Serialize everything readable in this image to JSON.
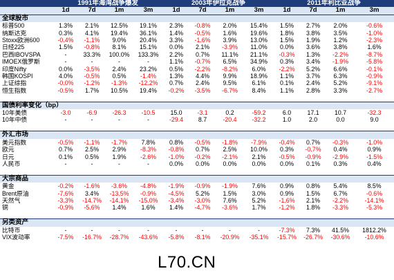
{
  "headers": {
    "groups": [
      "1991年海湾战争爆发",
      "2003年伊拉克战争",
      "2011年利比亚战争"
    ],
    "periods": [
      "1d",
      "7d",
      "1m",
      "3m"
    ]
  },
  "sections": [
    {
      "title": "全球股市",
      "rows": [
        {
          "label": "标普500",
          "values": [
            "1.3%",
            "2.1%",
            "12.5%",
            "19.1%",
            "2.3%",
            "-0.8%",
            "2.0%",
            "15.4%",
            "1.5%",
            "2.7%",
            "2.0%",
            "-0.6%"
          ]
        },
        {
          "label": "纳斯达克",
          "values": [
            "0.3%",
            "4.1%",
            "19.4%",
            "36.1%",
            "1.4%",
            "-0.5%",
            "1.6%",
            "19.6%",
            "1.8%",
            "3.8%",
            "3.5%",
            "-1.0%"
          ]
        },
        {
          "label": "Stoxx欧洲600",
          "values": [
            "-0.4%",
            "-1.1%",
            "9.0%",
            "20.4%",
            "3.3%",
            "-1.6%",
            "3.9%",
            "13.0%",
            "1.5%",
            "1.9%",
            "1.2%",
            "-2.3%"
          ]
        },
        {
          "label": "日经225",
          "values": [
            "1.5%",
            "-0.8%",
            "8.1%",
            "15.1%",
            "0.0%",
            "2.1%",
            "-3.9%",
            "11.0%",
            "0.0%",
            "3.6%",
            "3.8%",
            "1.6%"
          ]
        },
        {
          "label": "巴西IBOVSPA",
          "values": [
            "-",
            "33.3%",
            "100.0%",
            "133.3%",
            "2.2%",
            "0.7%",
            "11.1%",
            "21.1%",
            "-0.3%",
            "1.3%",
            "-2.2%",
            "-8.7%"
          ]
        },
        {
          "label": "IMOEX俄罗斯",
          "values": [
            "-",
            "-",
            "-",
            "-",
            "1.1%",
            "-0.7%",
            "6.5%",
            "34.9%",
            "0.3%",
            "3.4%",
            "-1.9%",
            "-5.8%"
          ]
        },
        {
          "label": "印度Nifty",
          "values": [
            "0.0%",
            "-3.5%",
            "2.4%",
            "23.2%",
            "0.5%",
            "-2.2%",
            "-8.2%",
            "6.0%",
            "-2.2%",
            "5.2%",
            "6.6%",
            "-0.1%"
          ]
        },
        {
          "label": "韩国KOSPI",
          "values": [
            "4.0%",
            "-0.5%",
            "0.5%",
            "-1.4%",
            "1.3%",
            "4.4%",
            "9.9%",
            "18.9%",
            "1.1%",
            "3.7%",
            "6.3%",
            "-0.9%"
          ]
        },
        {
          "label": "上证综指",
          "values": [
            "-0.0%",
            "-1.2%",
            "-1.3%",
            "-12.2%",
            "0.7%",
            "2.4%",
            "9.5%",
            "6.1%",
            "0.1%",
            "2.4%",
            "5.2%",
            "-9.1%"
          ]
        },
        {
          "label": "恒生指数",
          "values": [
            "-0.5%",
            "1.7%",
            "10.5%",
            "19.4%",
            "-0.2%",
            "-3.5%",
            "-6.7%",
            "8.4%",
            "1.1%",
            "2.8%",
            "3.3%",
            "-2.7%"
          ]
        }
      ]
    },
    {
      "title": "国债利率变化（bp）",
      "rows": [
        {
          "label": "10年美债",
          "values": [
            "-3.0",
            "-6.9",
            "-26.3",
            "-10.5",
            "15.0",
            "-3.1",
            "0.2",
            "-59.2",
            "6.0",
            "17.1",
            "10.7",
            "-32.3"
          ]
        },
        {
          "label": "10年中债",
          "values": [
            "-",
            "-",
            "-",
            "-",
            "-29.4",
            "8.7",
            "-20.4",
            "-32.2",
            "1.0",
            "2.0",
            "0.0",
            "9.0"
          ]
        }
      ]
    },
    {
      "title": "外汇市场",
      "rows": [
        {
          "label": "美元指数",
          "values": [
            "-0.5%",
            "-1.1%",
            "-1.7%",
            "7.8%",
            "0.8%",
            "-0.5%",
            "-1.8%",
            "-7.9%",
            "-0.4%",
            "0.7%",
            "-0.3%",
            "-1.0%"
          ]
        },
        {
          "label": "欧元",
          "values": [
            "0.7%",
            "2.5%",
            "2.9%",
            "-8.3%",
            "-0.8%",
            "0.7%",
            "2.5%",
            "10.0%",
            "0.3%",
            "-0.7%",
            "0.4%",
            "0.9%"
          ]
        },
        {
          "label": "日元",
          "values": [
            "0.1%",
            "0.5%",
            "1.9%",
            "-2.6%",
            "-1.0%",
            "-0.2%",
            "-2.1%",
            "2.1%",
            "-0.5%",
            "-0.9%",
            "-2.9%",
            "-1.5%"
          ]
        },
        {
          "label": "人民币",
          "values": [
            "-",
            "-",
            "-",
            "-",
            "0.0%",
            "0.0%",
            "0.0%",
            "0.0%",
            "0.0%",
            "0.1%",
            "0.3%",
            "0.4%"
          ]
        }
      ]
    },
    {
      "title": "大宗商品",
      "rows": [
        {
          "label": "黄金",
          "values": [
            "-0.2%",
            "-1.6%",
            "-3.6%",
            "-4.8%",
            "-1.9%",
            "-0.9%",
            "-1.9%",
            "7.6%",
            "0.9%",
            "0.8%",
            "5.4%",
            "8.5%"
          ]
        },
        {
          "label": "Brent原油",
          "values": [
            "-7.6%",
            "3.4%",
            "-13.5%",
            "-0.9%",
            "-4.5%",
            "5.2%",
            "1.5%",
            "3.0%",
            "0.9%",
            "1.5%",
            "6.7%",
            "-0.6%"
          ]
        },
        {
          "label": "天然气",
          "values": [
            "-3.3%",
            "-14.7%",
            "-14.1%",
            "-15.0%",
            "-3.4%",
            "-3.0%",
            "7.6%",
            "5.2%",
            "-1.6%",
            "2.1%",
            "-2.2%",
            "-14.1%"
          ]
        },
        {
          "label": "铜",
          "values": [
            "-0.9%",
            "-5.6%",
            "1.4%",
            "1.6%",
            "1.4%",
            "-4.7%",
            "-3.6%",
            "1.7%",
            "-1.2%",
            "1.8%",
            "-3.3%",
            "-5.3%"
          ]
        }
      ]
    },
    {
      "title": "另类资产",
      "rows": [
        {
          "label": "比特币",
          "values": [
            "-",
            "-",
            "-",
            "-",
            "-",
            "-",
            "-",
            "-",
            "-7.3%",
            "7.3%",
            "41.5%",
            "1812.2%"
          ]
        },
        {
          "label": "VIX波动率",
          "values": [
            "-7.5%",
            "-16.7%",
            "-28.7%",
            "-43.6%",
            "-5.8%",
            "-8.1%",
            "-20.9%",
            "-35.1%",
            "-15.7%",
            "-26.7%",
            "-30.6%",
            "-10.6%"
          ]
        }
      ]
    }
  ],
  "watermark": "L70.CN",
  "colors": {
    "header_bg": "#1f3d7a",
    "subheader_bg": "#dbe6f5",
    "negative": "#ff0000",
    "positive": "#000000"
  }
}
